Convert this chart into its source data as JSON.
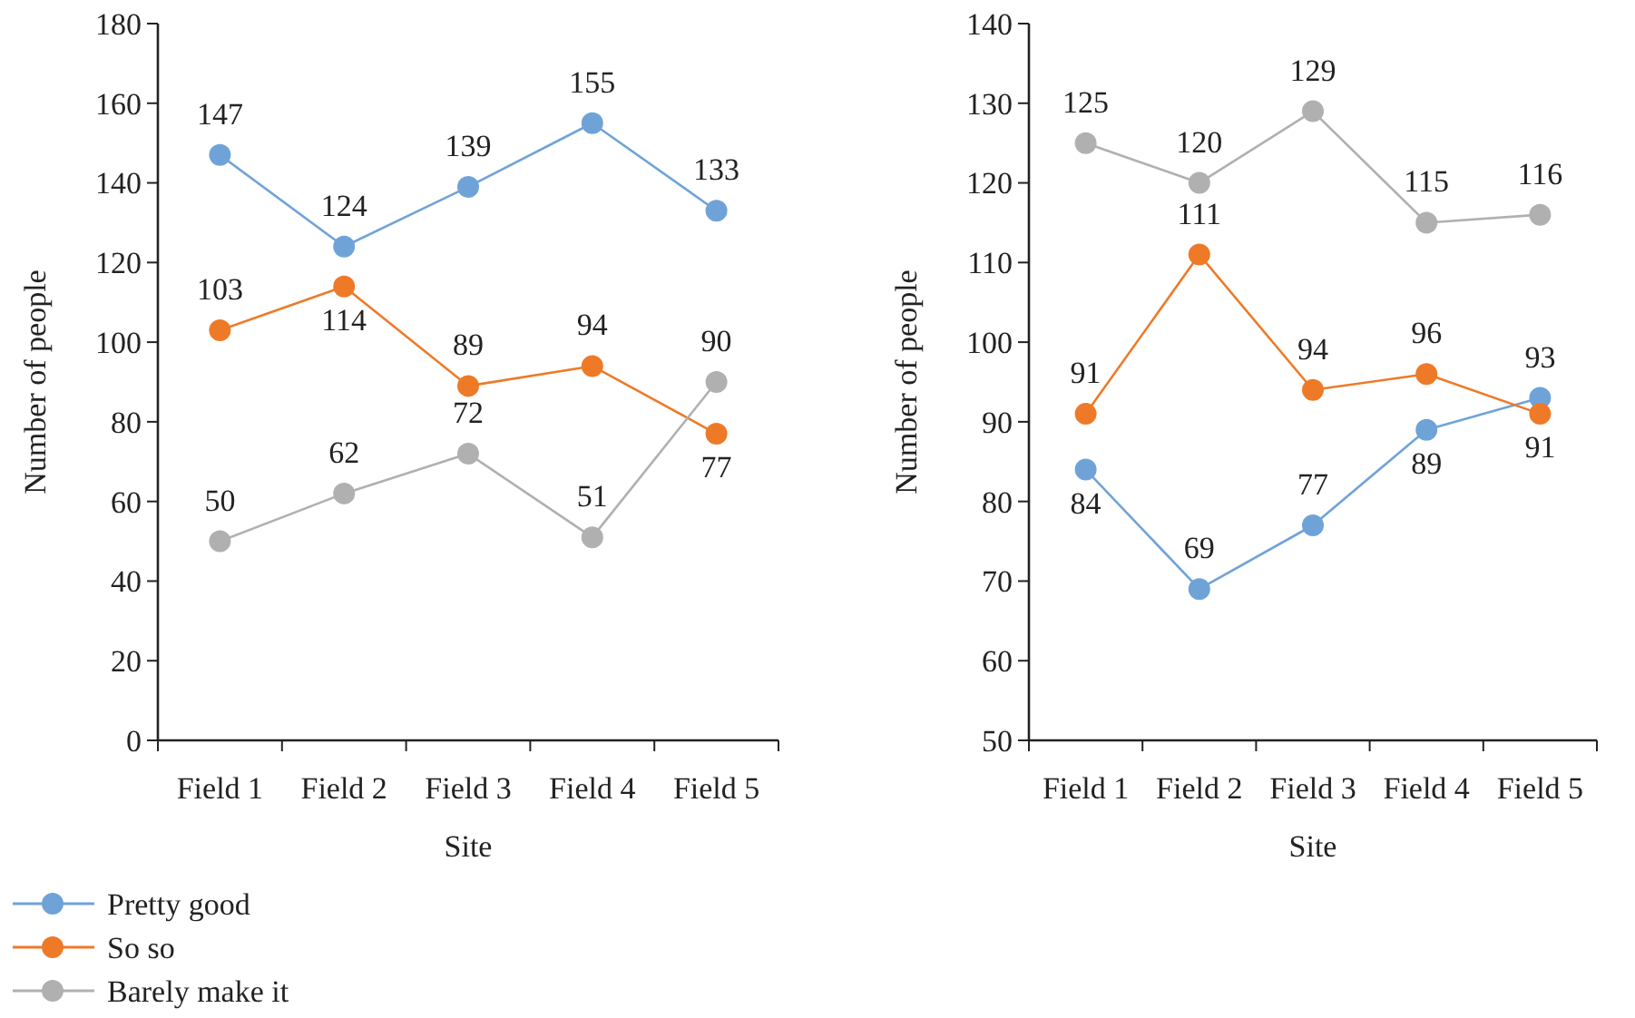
{
  "chart_data": [
    {
      "type": "line",
      "xlabel": "Site",
      "ylabel": "Number of people",
      "categories": [
        "Field 1",
        "Field 2",
        "Field 3",
        "Field 4",
        "Field 5"
      ],
      "ylim": [
        0,
        180
      ],
      "yticks": [
        0,
        20,
        40,
        60,
        80,
        100,
        120,
        140,
        160,
        180
      ],
      "marker": "circle",
      "data_labels": true,
      "legend": "bottom left",
      "grid": false,
      "series": [
        {
          "name": "Pretty good",
          "color": "#6fa3d8",
          "values": [
            147,
            124,
            139,
            155,
            133
          ]
        },
        {
          "name": "So so",
          "color": "#ee7a28",
          "values": [
            103,
            114,
            89,
            94,
            77
          ]
        },
        {
          "name": "Barely make it",
          "color": "#b0b0b0",
          "values": [
            50,
            62,
            72,
            51,
            90
          ]
        }
      ]
    },
    {
      "type": "line",
      "xlabel": "Site",
      "ylabel": "Number of people",
      "categories": [
        "Field 1",
        "Field 2",
        "Field 3",
        "Field 4",
        "Field 5"
      ],
      "ylim": [
        50,
        140
      ],
      "yticks": [
        50,
        60,
        70,
        80,
        90,
        100,
        110,
        120,
        130,
        140
      ],
      "marker": "circle",
      "data_labels": true,
      "grid": false,
      "series": [
        {
          "color": "#6fa3d8",
          "values": [
            84,
            69,
            77,
            89,
            93
          ]
        },
        {
          "color": "#ee7a28",
          "values": [
            91,
            111,
            94,
            96,
            91
          ]
        },
        {
          "color": "#b0b0b0",
          "values": [
            125,
            120,
            129,
            115,
            116
          ]
        }
      ]
    }
  ]
}
